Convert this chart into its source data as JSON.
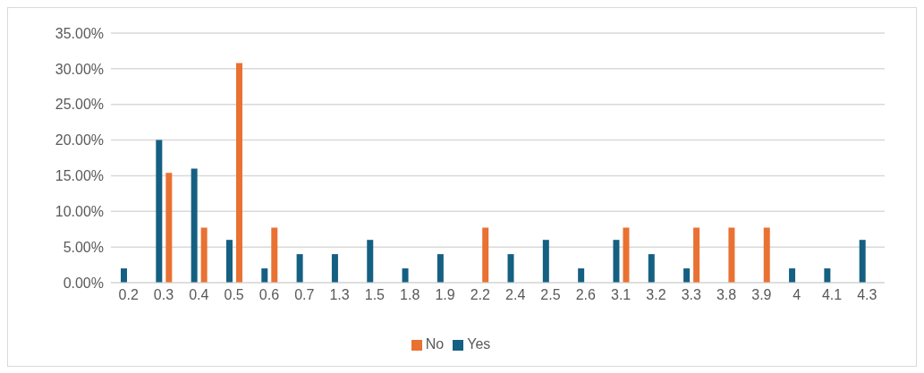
{
  "chart_data": {
    "type": "bar",
    "categories": [
      "0.2",
      "0.3",
      "0.4",
      "0.5",
      "0.6",
      "0.7",
      "1.3",
      "1.5",
      "1.8",
      "1.9",
      "2.2",
      "2.4",
      "2.5",
      "2.6",
      "3.1",
      "3.2",
      "3.3",
      "3.8",
      "3.9",
      "4",
      "4.1",
      "4.3"
    ],
    "series": [
      {
        "name": "Yes",
        "color": "#156082",
        "values": [
          2,
          20,
          16,
          6,
          2,
          4,
          4,
          6,
          2,
          4,
          0,
          4,
          6,
          2,
          6,
          4,
          2,
          0,
          0,
          2,
          2,
          6
        ]
      },
      {
        "name": "No",
        "color": "#e97132",
        "values": [
          0,
          15.4,
          7.7,
          30.8,
          7.7,
          0,
          0,
          0,
          0,
          0,
          7.7,
          0,
          0,
          0,
          7.7,
          0,
          7.7,
          7.7,
          7.7,
          0,
          0,
          0
        ]
      }
    ],
    "ylim": [
      0,
      35
    ],
    "yticks": [
      {
        "value": 0,
        "label": "0.00%"
      },
      {
        "value": 5,
        "label": "5.00%"
      },
      {
        "value": 10,
        "label": "10.00%"
      },
      {
        "value": 15,
        "label": "15.00%"
      },
      {
        "value": 20,
        "label": "20.00%"
      },
      {
        "value": 25,
        "label": "25.00%"
      },
      {
        "value": 30,
        "label": "30.00%"
      },
      {
        "value": 35,
        "label": "35.00%"
      }
    ],
    "grid": "y",
    "legend": "bottom"
  }
}
